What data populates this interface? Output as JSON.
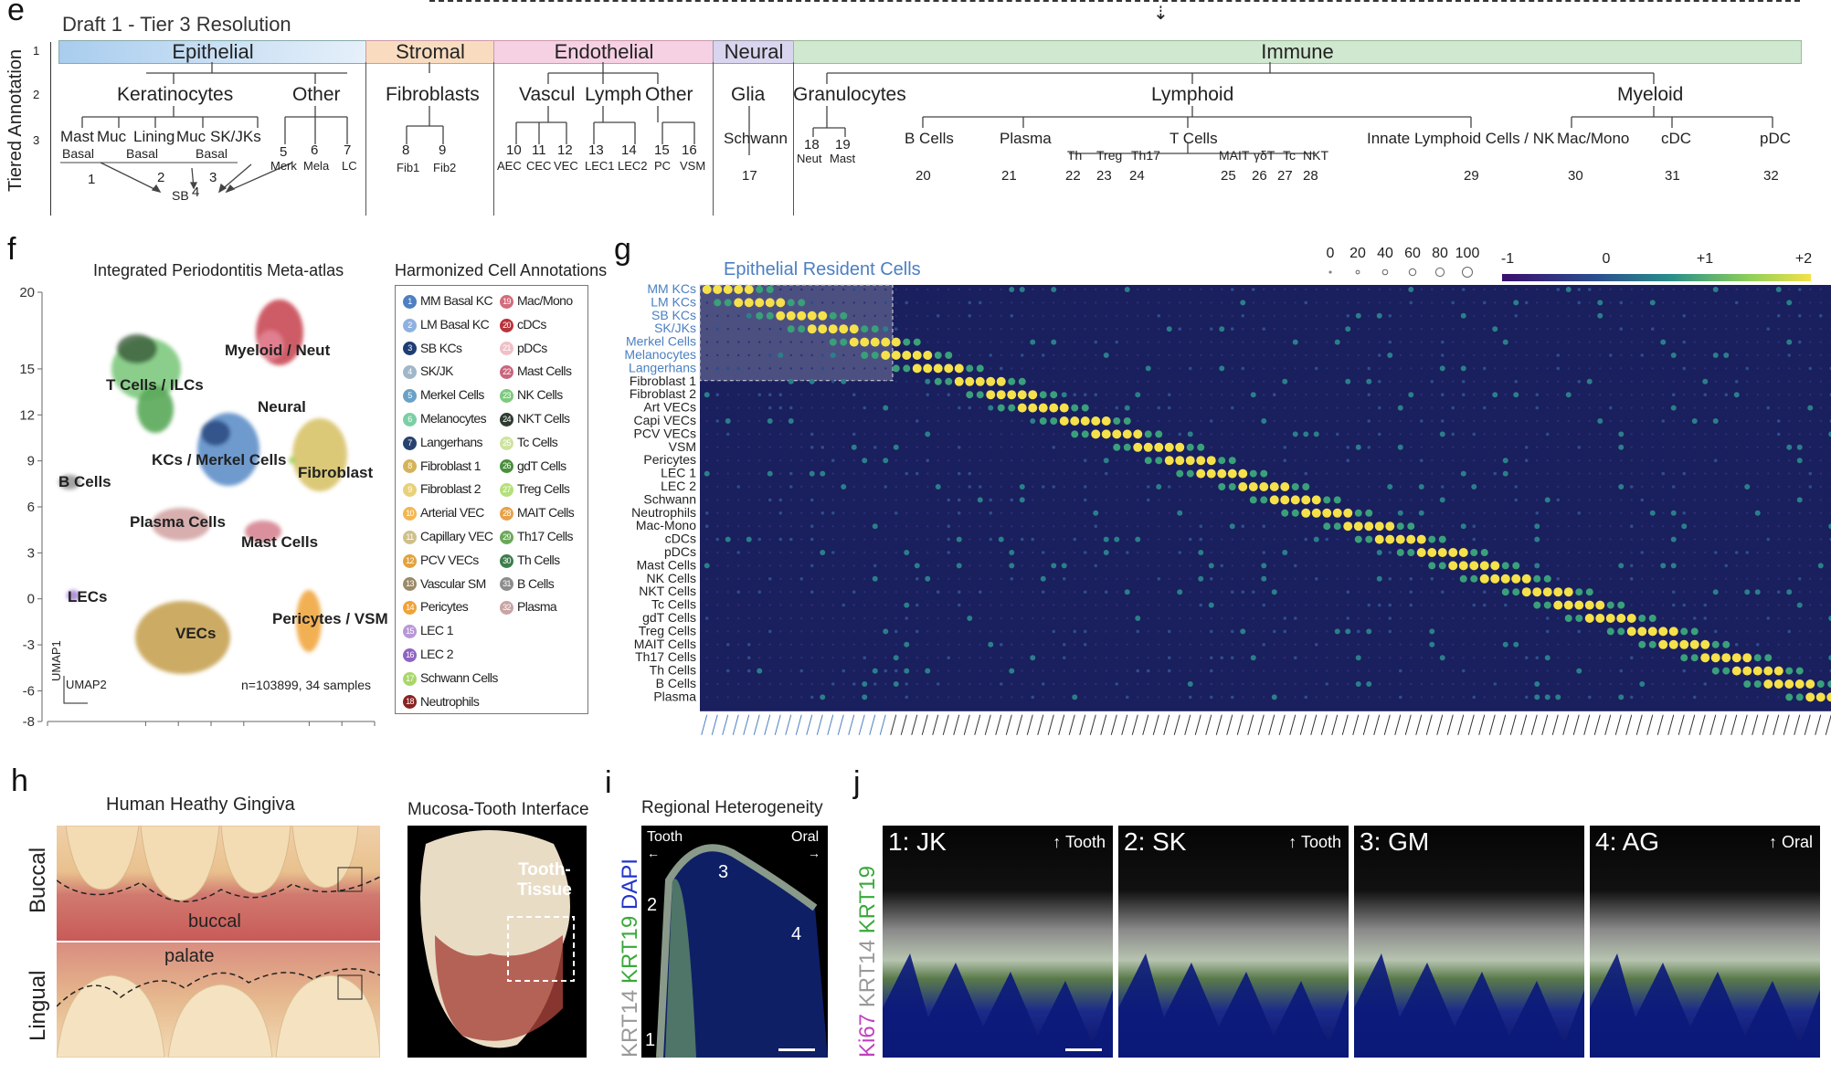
{
  "panels": {
    "e": "e",
    "f": "f",
    "g": "g",
    "h": "h",
    "i": "i",
    "j": "j"
  },
  "panel_e": {
    "title": "Draft 1 - Tier 3 Resolution",
    "y_label": "Tiered Annotation",
    "tier_nums": [
      "1",
      "2",
      "3"
    ],
    "tier1": [
      {
        "label": "Epithelial",
        "color": "#cfe3f5"
      },
      {
        "label": "Stromal",
        "color": "#f9dcc0"
      },
      {
        "label": "Endothelial",
        "color": "#f6d0e3"
      },
      {
        "label": "Neural",
        "color": "#d9d5ee"
      },
      {
        "label": "Immune",
        "color": "#cfe8cf"
      }
    ],
    "tier2": [
      "Keratinocytes",
      "Other",
      "Fibroblasts",
      "Vascul",
      "Lymph",
      "Other",
      "Glia",
      "Granulocytes",
      "Lymphoid",
      "Myeloid"
    ],
    "tier3": [
      "Mast",
      "Muc",
      "Lining",
      "Muc",
      "SK/JKs",
      "Basal",
      "Basal",
      "Basal",
      "Schwann",
      "B Cells",
      "Plasma",
      "T Cells",
      "Th",
      "Treg",
      "Th17",
      "MAIT",
      "γδT",
      "Tc",
      "NKT",
      "Innate Lymphoid Cells / NK",
      "Mac/Mono",
      "cDC",
      "pDC"
    ],
    "numbers": [
      "1",
      "2",
      "3",
      "4",
      "SB",
      "5",
      "6",
      "7",
      "8",
      "9",
      "10",
      "11",
      "12",
      "13",
      "14",
      "15",
      "16",
      "17",
      "18",
      "19",
      "20",
      "21",
      "22",
      "23",
      "24",
      "25",
      "26",
      "27",
      "28",
      "29",
      "30",
      "31",
      "32"
    ],
    "sublabels": [
      "Merk",
      "Mela",
      "LC",
      "Fib1",
      "Fib2",
      "AEC",
      "CEC",
      "VEC",
      "LEC1",
      "LEC2",
      "PC",
      "VSM",
      "Neut",
      "Mast"
    ]
  },
  "panel_f": {
    "title": "Integrated Periodontitis Meta-atlas",
    "legend_title": "Harmonized Cell Annotations",
    "footer": "n=103899, 34 samples",
    "axis_x_label": "UMAP2",
    "axis_y_label": "UMAP1",
    "cluster_labels": [
      "Myeloid / Neut",
      "T Cells / ILCs",
      "Neural",
      "KCs / Merkel Cells",
      "Fibroblast",
      "B Cells",
      "Plasma Cells",
      "Mast Cells",
      "LECs",
      "VECs",
      "Pericytes / VSM"
    ],
    "chart_data": {
      "type": "scatter",
      "title": "Integrated Periodontitis Meta-atlas",
      "xlabel": "UMAP2",
      "ylabel": "UMAP1",
      "xticks": [
        -12,
        -3,
        0,
        3,
        6,
        12,
        15,
        18
      ],
      "yticks": [
        20,
        15,
        12,
        9,
        6,
        3,
        0,
        -3,
        -6,
        -8
      ],
      "xlim": [
        -12,
        18
      ],
      "ylim": [
        -8,
        20
      ]
    },
    "legend": [
      {
        "n": "1",
        "label": "MM Basal KC",
        "color": "#4e7fc2"
      },
      {
        "n": "2",
        "label": "LM Basal KC",
        "color": "#8fb1e0"
      },
      {
        "n": "3",
        "label": "SB KCs",
        "color": "#1f3d75"
      },
      {
        "n": "4",
        "label": "SK/JK",
        "color": "#9fb7c9"
      },
      {
        "n": "5",
        "label": "Merkel Cells",
        "color": "#6aa1c8"
      },
      {
        "n": "6",
        "label": "Melanocytes",
        "color": "#7ccfa4"
      },
      {
        "n": "7",
        "label": "Langerhans",
        "color": "#27426e"
      },
      {
        "n": "8",
        "label": "Fibroblast 1",
        "color": "#d5b35a"
      },
      {
        "n": "9",
        "label": "Fibroblast 2",
        "color": "#e8d17a"
      },
      {
        "n": "10",
        "label": "Arterial VEC",
        "color": "#f2b652"
      },
      {
        "n": "11",
        "label": "Capillary VEC",
        "color": "#cfc08a"
      },
      {
        "n": "12",
        "label": "PCV VECs",
        "color": "#e3a23c"
      },
      {
        "n": "13",
        "label": "Vascular SM",
        "color": "#9a8a6a"
      },
      {
        "n": "14",
        "label": "Pericytes",
        "color": "#f0a236"
      },
      {
        "n": "15",
        "label": "LEC 1",
        "color": "#b897d9"
      },
      {
        "n": "16",
        "label": "LEC 2",
        "color": "#8f63c2"
      },
      {
        "n": "17",
        "label": "Schwann Cells",
        "color": "#a9d66b"
      },
      {
        "n": "18",
        "label": "Neutrophils",
        "color": "#8a2222"
      },
      {
        "n": "19",
        "label": "Mac/Mono",
        "color": "#d46b7b"
      },
      {
        "n": "20",
        "label": "cDCs",
        "color": "#b8333a"
      },
      {
        "n": "21",
        "label": "pDCs",
        "color": "#f0c0c6"
      },
      {
        "n": "22",
        "label": "Mast Cells",
        "color": "#c9657d"
      },
      {
        "n": "23",
        "label": "NK Cells",
        "color": "#7ec97e"
      },
      {
        "n": "24",
        "label": "NKT Cells",
        "color": "#2f3b2f"
      },
      {
        "n": "25",
        "label": "Tc Cells",
        "color": "#cfe3a0"
      },
      {
        "n": "26",
        "label": "gdT Cells",
        "color": "#4b8f3e"
      },
      {
        "n": "27",
        "label": "Treg Cells",
        "color": "#b5e07a"
      },
      {
        "n": "28",
        "label": "MAIT Cells",
        "color": "#e6a24a"
      },
      {
        "n": "29",
        "label": "Th17 Cells",
        "color": "#6aa858"
      },
      {
        "n": "30",
        "label": "Th Cells",
        "color": "#3d7d4b"
      },
      {
        "n": "31",
        "label": "B Cells",
        "color": "#8d8d8d"
      },
      {
        "n": "32",
        "label": "Plasma",
        "color": "#c9a4a4"
      }
    ]
  },
  "panel_g": {
    "title": "Epithelial Resident Cells",
    "size_legend": [
      "0",
      "20",
      "40",
      "60",
      "80",
      "100"
    ],
    "color_legend": [
      "-1",
      "0",
      "+1",
      "+2"
    ],
    "chart_data": {
      "type": "heatmap",
      "title": "Epithelial Resident Cells",
      "rows": [
        "MM KCs",
        "LM KCs",
        "SB KCs",
        "SK/JKs",
        "Merkel Cells",
        "Melanocytes",
        "Langerhans",
        "Fibroblast 1",
        "Fibroblast 2",
        "Art VECs",
        "Capi VECs",
        "PCV VECs",
        "VSM",
        "Pericytes",
        "LEC 1",
        "LEC 2",
        "Schwann",
        "Neutrophils",
        "Mac-Mono",
        "cDCs",
        "pDCs",
        "Mast Cells",
        "NK Cells",
        "NKT Cells",
        "Tc Cells",
        "gdT Cells",
        "Treg Cells",
        "MAIT Cells",
        "Th17 Cells",
        "Th Cells",
        "B Cells",
        "Plasma"
      ],
      "highlight_rows": [
        "MM KCs",
        "LM KCs",
        "SB KCs",
        "SK/JKs",
        "Merkel Cells",
        "Melanocytes",
        "Langerhans"
      ],
      "color_scale": [
        "-1",
        "0",
        "+1",
        "+2"
      ],
      "size_scale": [
        0,
        20,
        40,
        60,
        80,
        100
      ],
      "n_genes": 108
    }
  },
  "panel_h": {
    "title_left": "Human Heathy Gingiva",
    "title_right": "Mucosa-Tooth Interface",
    "row_labels": [
      "Buccal",
      "Lingual"
    ],
    "annotations": [
      "buccal",
      "palate"
    ],
    "tooth_label": "Tooth-\nTissue"
  },
  "panel_i": {
    "title": "Regional Heterogeneity",
    "stain_labels": [
      "KRT14",
      "KRT19",
      "DAPI"
    ],
    "labels": [
      "Tooth",
      "Oral",
      "1",
      "2",
      "3",
      "4"
    ]
  },
  "panel_j": {
    "stain_labels": [
      "Ki67",
      "KRT14",
      "KRT19"
    ],
    "tiles": [
      {
        "label": "1: JK",
        "dir": "Tooth"
      },
      {
        "label": "2: SK",
        "dir": "Tooth"
      },
      {
        "label": "3: GM",
        "dir": ""
      },
      {
        "label": "4: AG",
        "dir": "Oral"
      }
    ]
  }
}
